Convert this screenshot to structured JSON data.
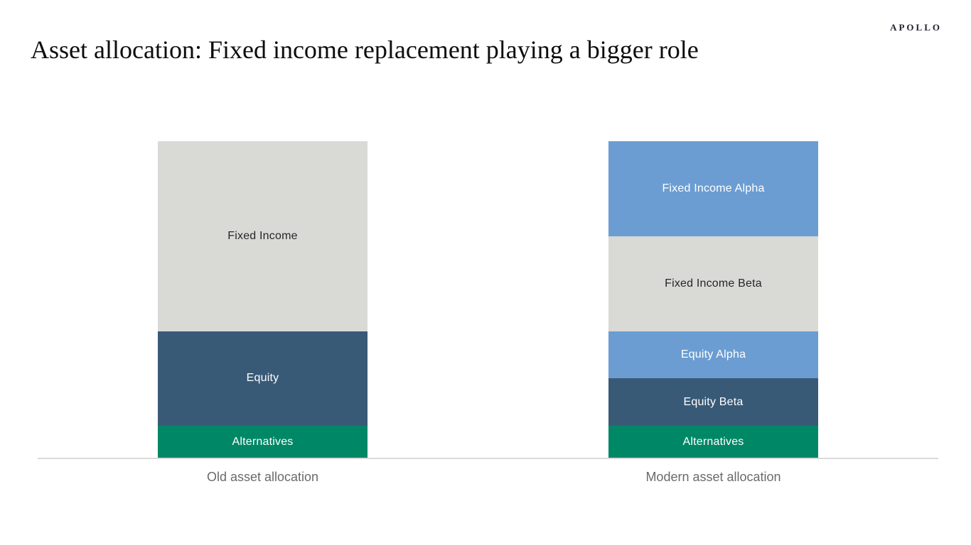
{
  "slide": {
    "title": "Asset allocation: Fixed income replacement playing a bigger role",
    "logo": "APOLLO"
  },
  "colors": {
    "fixed_income_gray": "#d9d9d6",
    "equity_navy": "#395a77",
    "alternatives_green": "#008766",
    "alpha_blue": "#6b9dd2",
    "axis_line": "#dadada",
    "category_label_gray": "#6a6a6a",
    "dark_segment_text": "#262626",
    "light_segment_text": "#ffffff"
  },
  "chart_data": {
    "type": "bar",
    "subtype": "stacked",
    "title": "Asset allocation: Fixed income replacement playing a bigger role",
    "xlabel": "",
    "ylabel": "",
    "ylim": [
      0,
      100
    ],
    "units": "%",
    "grid": false,
    "legend": "none (labels inside segments)",
    "categories": [
      "Old asset allocation",
      "Modern asset allocation"
    ],
    "bars": [
      {
        "category": "Old asset allocation",
        "segments": [
          {
            "label": "Fixed Income",
            "value": 60,
            "color": "#d9d9d6",
            "text_color": "#262626"
          },
          {
            "label": "Equity",
            "value": 30,
            "color": "#395a77",
            "text_color": "#ffffff"
          },
          {
            "label": "Alternatives",
            "value": 10,
            "color": "#008766",
            "text_color": "#ffffff"
          }
        ]
      },
      {
        "category": "Modern asset allocation",
        "segments": [
          {
            "label": "Fixed Income Alpha",
            "value": 30,
            "color": "#6b9dd2",
            "text_color": "#ffffff"
          },
          {
            "label": "Fixed Income Beta",
            "value": 30,
            "color": "#d9d9d6",
            "text_color": "#262626"
          },
          {
            "label": "Equity Alpha",
            "value": 15,
            "color": "#6b9dd2",
            "text_color": "#ffffff"
          },
          {
            "label": "Equity Beta",
            "value": 15,
            "color": "#395a77",
            "text_color": "#ffffff"
          },
          {
            "label": "Alternatives",
            "value": 10,
            "color": "#008766",
            "text_color": "#ffffff"
          }
        ]
      }
    ]
  }
}
